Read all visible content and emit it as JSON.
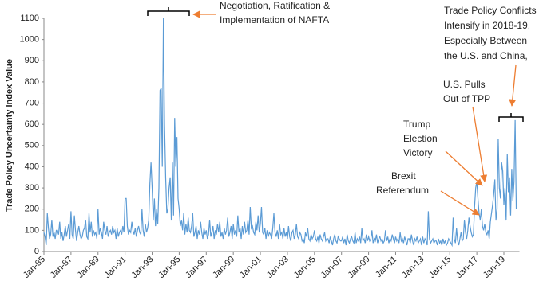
{
  "chart_data": {
    "type": "line",
    "y_label": "Trade Policy Uncertainty Index Value",
    "color": "#5b9bd5",
    "ylim": [
      0,
      1100
    ],
    "yticks": [
      0,
      100,
      200,
      300,
      400,
      500,
      600,
      700,
      800,
      900,
      1000,
      1100
    ],
    "annotations": [
      {
        "text": [
          "Negotiation, Ratification &",
          "Implementation of NAFTA"
        ]
      },
      {
        "text": [
          "Trade Policy Conflicts",
          "Intensify in 2018-19,",
          "Especially Between",
          "the U.S. and China,"
        ]
      },
      {
        "text": [
          "U.S. Pulls",
          "Out of TPP"
        ]
      },
      {
        "text": [
          "Trump",
          "Election",
          "Victory"
        ]
      },
      {
        "text": [
          "Brexit",
          "Referendum"
        ]
      }
    ],
    "categories": [
      "Jan-85",
      null,
      null,
      null,
      null,
      null,
      null,
      null,
      null,
      null,
      null,
      null,
      null,
      null,
      null,
      null,
      null,
      null,
      null,
      null,
      null,
      null,
      null,
      null,
      "Jan-87",
      null,
      null,
      null,
      null,
      null,
      null,
      null,
      null,
      null,
      null,
      null,
      null,
      null,
      null,
      null,
      null,
      null,
      null,
      null,
      null,
      null,
      null,
      null,
      "Jan-89",
      null,
      null,
      null,
      null,
      null,
      null,
      null,
      null,
      null,
      null,
      null,
      null,
      null,
      null,
      null,
      null,
      null,
      null,
      null,
      null,
      null,
      null,
      null,
      "Jan-91",
      null,
      null,
      null,
      null,
      null,
      null,
      null,
      null,
      null,
      null,
      null,
      null,
      null,
      null,
      null,
      null,
      null,
      null,
      null,
      null,
      null,
      null,
      null,
      "Jan-93",
      null,
      null,
      null,
      null,
      null,
      null,
      null,
      null,
      null,
      null,
      null,
      null,
      null,
      null,
      null,
      null,
      null,
      null,
      null,
      null,
      null,
      null,
      null,
      "Jan-95",
      null,
      null,
      null,
      null,
      null,
      null,
      null,
      null,
      null,
      null,
      null,
      null,
      null,
      null,
      null,
      null,
      null,
      null,
      null,
      null,
      null,
      null,
      null,
      "Jan-97",
      null,
      null,
      null,
      null,
      null,
      null,
      null,
      null,
      null,
      null,
      null,
      null,
      null,
      null,
      null,
      null,
      null,
      null,
      null,
      null,
      null,
      null,
      null,
      "Jan-99",
      null,
      null,
      null,
      null,
      null,
      null,
      null,
      null,
      null,
      null,
      null,
      null,
      null,
      null,
      null,
      null,
      null,
      null,
      null,
      null,
      null,
      null,
      null,
      "Jan-01",
      null,
      null,
      null,
      null,
      null,
      null,
      null,
      null,
      null,
      null,
      null,
      null,
      null,
      null,
      null,
      null,
      null,
      null,
      null,
      null,
      null,
      null,
      null,
      "Jan-03",
      null,
      null,
      null,
      null,
      null,
      null,
      null,
      null,
      null,
      null,
      null,
      null,
      null,
      null,
      null,
      null,
      null,
      null,
      null,
      null,
      null,
      null,
      null,
      "Jan-05",
      null,
      null,
      null,
      null,
      null,
      null,
      null,
      null,
      null,
      null,
      null,
      null,
      null,
      null,
      null,
      null,
      null,
      null,
      null,
      null,
      null,
      null,
      null,
      "Jan-07",
      null,
      null,
      null,
      null,
      null,
      null,
      null,
      null,
      null,
      null,
      null,
      null,
      null,
      null,
      null,
      null,
      null,
      null,
      null,
      null,
      null,
      null,
      null,
      "Jan-09",
      null,
      null,
      null,
      null,
      null,
      null,
      null,
      null,
      null,
      null,
      null,
      null,
      null,
      null,
      null,
      null,
      null,
      null,
      null,
      null,
      null,
      null,
      null,
      "Jan-11",
      null,
      null,
      null,
      null,
      null,
      null,
      null,
      null,
      null,
      null,
      null,
      null,
      null,
      null,
      null,
      null,
      null,
      null,
      null,
      null,
      null,
      null,
      null,
      "Jan-13",
      null,
      null,
      null,
      null,
      null,
      null,
      null,
      null,
      null,
      null,
      null,
      null,
      null,
      null,
      null,
      null,
      null,
      null,
      null,
      null,
      null,
      null,
      null,
      "Jan-15",
      null,
      null,
      null,
      null,
      null,
      null,
      null,
      null,
      null,
      null,
      null,
      null,
      null,
      null,
      null,
      null,
      null,
      null,
      null,
      null,
      null,
      null,
      null,
      "Jan-17",
      null,
      null,
      null,
      null,
      null,
      null,
      null,
      null,
      null,
      null,
      null,
      null,
      null,
      null,
      null,
      null,
      null,
      null,
      null,
      null,
      null,
      null,
      null,
      "Jan-19",
      null,
      null,
      null,
      null,
      null,
      null,
      null,
      null,
      null,
      null,
      null
    ],
    "values": [
      90,
      70,
      30,
      180,
      110,
      60,
      80,
      150,
      70,
      90,
      60,
      100,
      100,
      80,
      140,
      60,
      90,
      50,
      80,
      120,
      70,
      100,
      130,
      60,
      190,
      80,
      60,
      170,
      100,
      50,
      90,
      120,
      80,
      60,
      70,
      100,
      110,
      150,
      70,
      60,
      180,
      90,
      140,
      70,
      100,
      80,
      90,
      60,
      200,
      80,
      110,
      90,
      60,
      140,
      100,
      80,
      120,
      70,
      90,
      100,
      80,
      120,
      90,
      100,
      60,
      110,
      70,
      90,
      100,
      80,
      120,
      90,
      250,
      250,
      120,
      80,
      100,
      90,
      140,
      100,
      80,
      110,
      70,
      100,
      120,
      90,
      80,
      200,
      100,
      70,
      130,
      90,
      110,
      150,
      320,
      420,
      300,
      150,
      250,
      120,
      200,
      130,
      300,
      760,
      770,
      400,
      1100,
      600,
      350,
      180,
      200,
      300,
      350,
      150,
      420,
      170,
      630,
      400,
      540,
      250,
      200,
      120,
      150,
      100,
      180,
      80,
      130,
      90,
      160,
      100,
      90,
      120,
      180,
      70,
      90,
      120,
      60,
      100,
      80,
      140,
      90,
      60,
      110,
      80,
      100,
      60,
      80,
      150,
      70,
      90,
      120,
      60,
      100,
      80,
      130,
      90,
      140,
      70,
      90,
      60,
      110,
      80,
      100,
      160,
      70,
      90,
      120,
      60,
      130,
      80,
      100,
      70,
      170,
      90,
      110,
      60,
      120,
      80,
      140,
      90,
      100,
      150,
      80,
      210,
      110,
      120,
      90,
      80,
      140,
      100,
      170,
      90,
      130,
      210,
      90,
      80,
      110,
      60,
      100,
      70,
      90,
      80,
      60,
      110,
      180,
      90,
      70,
      100,
      60,
      130,
      80,
      90,
      60,
      110,
      70,
      90,
      60,
      120,
      70,
      50,
      90,
      100,
      60,
      80,
      130,
      70,
      60,
      90,
      80,
      50,
      60,
      40,
      90,
      70,
      110,
      60,
      50,
      80,
      60,
      70,
      100,
      60,
      50,
      70,
      40,
      80,
      60,
      50,
      70,
      90,
      50,
      60,
      60,
      40,
      70,
      50,
      30,
      60,
      80,
      50,
      40,
      70,
      60,
      50,
      50,
      70,
      40,
      60,
      30,
      80,
      50,
      40,
      60,
      70,
      50,
      40,
      90,
      40,
      60,
      50,
      70,
      40,
      110,
      50,
      60,
      40,
      80,
      50,
      70,
      50,
      60,
      100,
      40,
      60,
      50,
      80,
      40,
      60,
      70,
      50,
      60,
      40,
      50,
      100,
      50,
      70,
      40,
      60,
      50,
      80,
      60,
      40,
      70,
      50,
      60,
      40,
      90,
      50,
      60,
      40,
      70,
      50,
      30,
      60,
      60,
      40,
      80,
      50,
      30,
      60,
      50,
      70,
      40,
      50,
      60,
      30,
      70,
      40,
      60,
      50,
      30,
      190,
      60,
      40,
      50,
      60,
      40,
      50,
      50,
      30,
      60,
      40,
      50,
      30,
      60,
      40,
      50,
      30,
      40,
      60,
      50,
      40,
      30,
      160,
      60,
      40,
      110,
      50,
      30,
      60,
      90,
      50,
      60,
      150,
      90,
      60,
      100,
      160,
      120,
      90,
      70,
      80,
      210,
      300,
      330,
      250,
      180,
      150,
      200,
      120,
      100,
      130,
      90,
      80,
      100,
      60,
      140,
      180,
      220,
      270,
      340,
      150,
      200,
      530,
      300,
      250,
      420,
      380,
      220,
      300,
      150,
      460,
      280,
      350,
      170,
      390,
      240,
      330,
      620,
      200
    ]
  }
}
